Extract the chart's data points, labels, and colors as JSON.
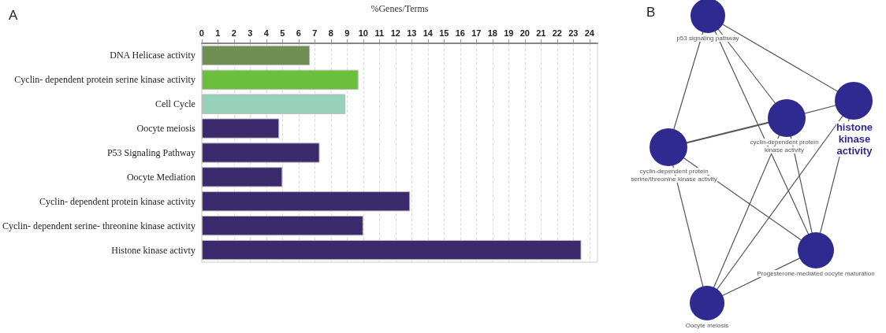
{
  "chart_data": [
    {
      "type": "bar",
      "title": "A",
      "xlabel": "%Genes/Terms",
      "orientation": "horizontal",
      "categories": [
        "DNA Helicase activity",
        "Cyclin- dependent protein serine kinase activity",
        "Cell Cycle",
        "Oocyte meiosis",
        "P53 Signaling Pathway",
        "Oocyte Mediation",
        "Cyclin- dependent protein kinase activity",
        "Cyclin- dependent serine- threonine kinase activity",
        "Histone kinase activty"
      ],
      "values": [
        6.7,
        9.7,
        8.9,
        4.8,
        7.3,
        5.0,
        12.9,
        10.0,
        23.5
      ],
      "colors": [
        "#6f8f55",
        "#6cbf3c",
        "#97d1bc",
        "#3b2a6b",
        "#3b2a6b",
        "#3b2a6b",
        "#3b2a6b",
        "#3b2a6b",
        "#3b2a6b"
      ],
      "xlim": [
        0,
        24.5
      ],
      "xticks": [
        0,
        1,
        2,
        3,
        4,
        5,
        6,
        7,
        8,
        9,
        10,
        11,
        12,
        13,
        14,
        15,
        16,
        17,
        18,
        19,
        20,
        21,
        22,
        23,
        24
      ],
      "grid": "x"
    },
    {
      "type": "other",
      "title": "B",
      "annotations": [
        "p53 signaling pathway",
        "cyclin-dependent protein kinase activity",
        "histone kinase activity",
        "cyclin-dependent protein serine/threonine kinase activity",
        "Progesterone-mediated oocyte maturation",
        "Oocyte meiosis"
      ]
    }
  ]
}
